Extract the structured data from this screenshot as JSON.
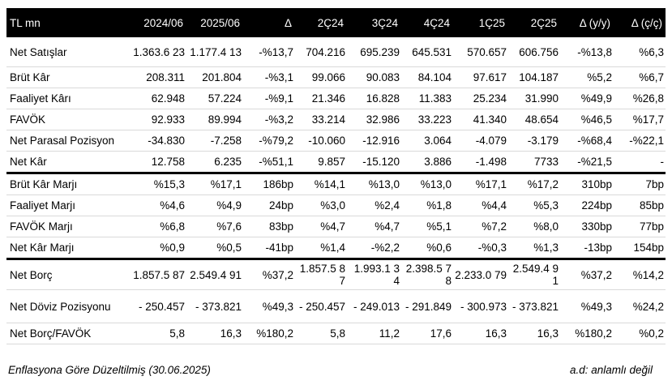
{
  "header": [
    "TL mn",
    "2024/06",
    "2025/06",
    "Δ",
    "2Ç24",
    "3Ç24",
    "4Ç24",
    "1Ç25",
    "2Ç25",
    "Δ (y/y)",
    "Δ (ç/ç)"
  ],
  "rows": [
    [
      "Net Satışlar",
      "1.363.6 23",
      "1.177.4 13",
      "-%13,7",
      "704.216",
      "695.239",
      "645.531",
      "570.657",
      "606.756",
      "-%13,8",
      "%6,3"
    ],
    [
      "Brüt Kâr",
      "208.311",
      "201.804",
      "-%3,1",
      "99.066",
      "90.083",
      "84.104",
      "97.617",
      "104.187",
      "%5,2",
      "%6,7"
    ],
    [
      "Faaliyet Kârı",
      "62.948",
      "57.224",
      "-%9,1",
      "21.346",
      "16.828",
      "11.383",
      "25.234",
      "31.990",
      "%49,9",
      "%26,8"
    ],
    [
      "FAVÖK",
      "92.933",
      "89.994",
      "-%3,2",
      "33.214",
      "32.986",
      "33.223",
      "41.340",
      "48.654",
      "%46,5",
      "%17,7"
    ],
    [
      "Net Parasal Pozisyon",
      "-34.830",
      "-7.258",
      "-%79,2",
      "-10.060",
      "-12.916",
      "3.064",
      "-4.079",
      "-3.179",
      "-%68,4",
      "-%22,1"
    ],
    [
      "Net Kâr",
      "12.758",
      "6.235",
      "-%51,1",
      "9.857",
      "-15.120",
      "3.886",
      "-1.498",
      "7733",
      "-%21,5",
      "-"
    ],
    [
      "Brüt Kâr Marjı",
      "%15,3",
      "%17,1",
      "186bp",
      "%14,1",
      "%13,0",
      "%13,0",
      "%17,1",
      "%17,2",
      "310bp",
      "7bp"
    ],
    [
      "Faaliyet Marjı",
      "%4,6",
      "%4,9",
      "24bp",
      "%3,0",
      "%2,4",
      "%1,8",
      "%4,4",
      "%5,3",
      "224bp",
      "85bp"
    ],
    [
      "FAVÖK Marjı",
      "%6,8",
      "%7,6",
      "83bp",
      "%4,7",
      "%4,7",
      "%5,1",
      "%7,2",
      "%8,0",
      "330bp",
      "77bp"
    ],
    [
      "Net Kâr Marjı",
      "%0,9",
      "%0,5",
      "-41bp",
      "%1,4",
      "-%2,2",
      "%0,6",
      "-%0,3",
      "%1,3",
      "-13bp",
      "154bp"
    ],
    [
      "Net Borç",
      "1.857.5 87",
      "2.549.4 91",
      "%37,2",
      "1.857.5 87",
      "1.993.1 34",
      "2.398.5 78",
      "2.233.0 79",
      "2.549.4 91",
      "%37,2",
      "%14,2"
    ],
    [
      "Net Döviz Pozisyonu",
      "- 250.457",
      "- 373.821",
      "%49,3",
      "- 250.457",
      "- 249.013",
      "- 291.849",
      "- 300.973",
      "- 373.821",
      "%49,3",
      "%24,2"
    ],
    [
      "Net Borç/FAVÖK",
      "5,8",
      "16,3",
      "%180,2",
      "5,8",
      "11,2",
      "17,6",
      "16,3",
      "16,3",
      "%180,2",
      "%0,2"
    ]
  ],
  "footer_left": "Enflasyona Göre Düzeltilmiş (30.06.2025)",
  "footer_right": "a.d: anlamlı değil"
}
